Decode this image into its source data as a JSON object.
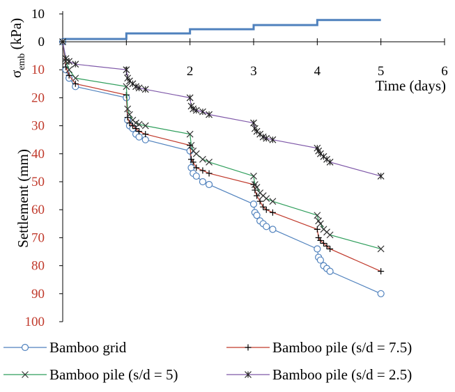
{
  "chart_data": [
    {
      "type": "line",
      "ylabel": "σemb (kPa)",
      "ylabel_base": "σ",
      "ylabel_sub": "emb",
      "ylabel_unit": " (kPa)",
      "ylim": [
        0,
        10
      ],
      "xlim": [
        0,
        6
      ],
      "yticks": [
        "0",
        "10"
      ],
      "grid": false,
      "line_color": "#4f81bd",
      "series": [
        {
          "name": "",
          "points": [
            [
              0,
              1
            ],
            [
              1,
              1
            ],
            [
              1,
              3
            ],
            [
              2,
              3
            ],
            [
              2,
              4.5
            ],
            [
              3,
              4.5
            ],
            [
              3,
              6
            ],
            [
              4,
              6
            ],
            [
              4,
              7.8
            ],
            [
              5,
              7.8
            ]
          ]
        }
      ]
    },
    {
      "type": "line",
      "xlabel": "Time (days)",
      "ylabel": "Settlement (mm)",
      "xlim": [
        0,
        6
      ],
      "ylim": [
        0,
        100
      ],
      "y_inverted": true,
      "xticks": [
        "1",
        "2",
        "3",
        "4",
        "5",
        "6"
      ],
      "yticks": [
        "10",
        "20",
        "30",
        "40",
        "50",
        "60",
        "70",
        "80",
        "90",
        "100"
      ],
      "grid": false,
      "legend_position": "bottom",
      "series": [
        {
          "name": "Bamboo grid",
          "color": "#4f81bd",
          "marker": "circle",
          "points": [
            [
              0,
              0
            ],
            [
              0.05,
              10
            ],
            [
              0.1,
              13
            ],
            [
              0.2,
              16
            ],
            [
              1,
              20
            ],
            [
              1.02,
              28
            ],
            [
              1.05,
              30
            ],
            [
              1.1,
              31
            ],
            [
              1.15,
              33
            ],
            [
              1.2,
              34
            ],
            [
              1.3,
              35
            ],
            [
              2,
              39
            ],
            [
              2.02,
              45
            ],
            [
              2.05,
              47
            ],
            [
              2.1,
              48
            ],
            [
              2.2,
              50
            ],
            [
              2.3,
              51
            ],
            [
              3,
              58
            ],
            [
              3.02,
              61
            ],
            [
              3.05,
              62
            ],
            [
              3.1,
              64
            ],
            [
              3.15,
              65
            ],
            [
              3.2,
              66
            ],
            [
              3.3,
              67
            ],
            [
              4,
              74
            ],
            [
              4.02,
              77
            ],
            [
              4.05,
              78
            ],
            [
              4.1,
              80
            ],
            [
              4.15,
              81
            ],
            [
              4.2,
              82
            ],
            [
              5,
              90
            ]
          ]
        },
        {
          "name": "Bamboo pile (s/d = 7.5)",
          "color": "#c0392b",
          "marker": "plus",
          "points": [
            [
              0,
              0
            ],
            [
              0.05,
              9
            ],
            [
              0.1,
              12
            ],
            [
              0.2,
              15
            ],
            [
              1,
              19
            ],
            [
              1.02,
              27
            ],
            [
              1.05,
              29
            ],
            [
              1.1,
              30
            ],
            [
              1.15,
              31
            ],
            [
              1.2,
              32
            ],
            [
              1.3,
              33
            ],
            [
              2,
              37
            ],
            [
              2.02,
              42
            ],
            [
              2.05,
              43
            ],
            [
              2.1,
              45
            ],
            [
              2.2,
              46
            ],
            [
              2.3,
              47
            ],
            [
              3,
              51
            ],
            [
              3.02,
              53
            ],
            [
              3.05,
              55
            ],
            [
              3.1,
              57
            ],
            [
              3.15,
              59
            ],
            [
              3.2,
              60
            ],
            [
              3.3,
              61
            ],
            [
              4,
              67
            ],
            [
              4.02,
              70
            ],
            [
              4.05,
              71
            ],
            [
              4.1,
              72
            ],
            [
              4.15,
              73
            ],
            [
              4.2,
              74
            ],
            [
              5,
              82
            ]
          ]
        },
        {
          "name": "Bamboo pile (s/d = 5)",
          "color": "#2e9e5b",
          "marker": "x",
          "points": [
            [
              0,
              0
            ],
            [
              0.05,
              7
            ],
            [
              0.1,
              10
            ],
            [
              0.2,
              13
            ],
            [
              1,
              16
            ],
            [
              1.02,
              24
            ],
            [
              1.05,
              26
            ],
            [
              1.1,
              28
            ],
            [
              1.15,
              29
            ],
            [
              1.2,
              29.5
            ],
            [
              1.3,
              30
            ],
            [
              2,
              33
            ],
            [
              2.02,
              37
            ],
            [
              2.05,
              39
            ],
            [
              2.1,
              40
            ],
            [
              2.2,
              42
            ],
            [
              2.3,
              43
            ],
            [
              3,
              48
            ],
            [
              3.02,
              51
            ],
            [
              3.05,
              52
            ],
            [
              3.1,
              54
            ],
            [
              3.15,
              55
            ],
            [
              3.2,
              56
            ],
            [
              3.3,
              57
            ],
            [
              4,
              62
            ],
            [
              4.02,
              64
            ],
            [
              4.05,
              65
            ],
            [
              4.1,
              67
            ],
            [
              4.15,
              68
            ],
            [
              4.2,
              69
            ],
            [
              5,
              74
            ]
          ]
        },
        {
          "name": "Bamboo pile (s/d = 2.5)",
          "color": "#7e57a8",
          "marker": "star",
          "points": [
            [
              0,
              0
            ],
            [
              0.05,
              6
            ],
            [
              0.1,
              7
            ],
            [
              0.2,
              8
            ],
            [
              1,
              10
            ],
            [
              1.02,
              13
            ],
            [
              1.05,
              14
            ],
            [
              1.1,
              15
            ],
            [
              1.15,
              16
            ],
            [
              1.2,
              16.5
            ],
            [
              1.3,
              17
            ],
            [
              2,
              20
            ],
            [
              2.02,
              23
            ],
            [
              2.05,
              24
            ],
            [
              2.1,
              24.5
            ],
            [
              2.2,
              25
            ],
            [
              2.3,
              26
            ],
            [
              3,
              29
            ],
            [
              3.02,
              31
            ],
            [
              3.05,
              32
            ],
            [
              3.1,
              33
            ],
            [
              3.15,
              34
            ],
            [
              3.2,
              34.5
            ],
            [
              3.3,
              35
            ],
            [
              4,
              38
            ],
            [
              4.02,
              39
            ],
            [
              4.05,
              40
            ],
            [
              4.1,
              41
            ],
            [
              4.15,
              42
            ],
            [
              4.2,
              43
            ],
            [
              5,
              48
            ]
          ]
        }
      ]
    }
  ]
}
